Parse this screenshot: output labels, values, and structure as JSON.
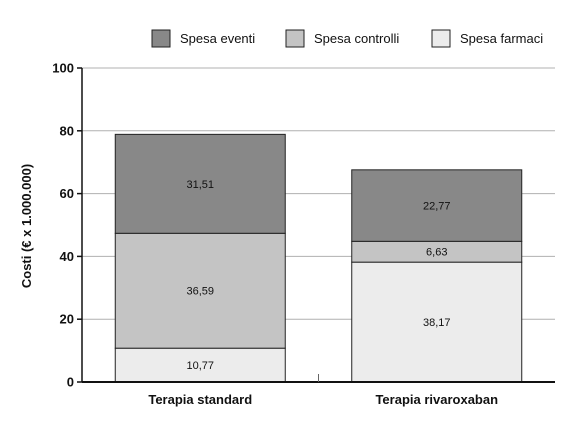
{
  "chart_data": {
    "type": "bar",
    "stacked": true,
    "categories": [
      "Terapia standard",
      "Terapia rivaroxaban"
    ],
    "series": [
      {
        "name": "Spesa farmaci",
        "color": "#ececec",
        "values": [
          10.77,
          38.17
        ],
        "labels": [
          "10,77",
          "38,17"
        ]
      },
      {
        "name": "Spesa controlli",
        "color": "#c4c4c4",
        "values": [
          36.59,
          6.63
        ],
        "labels": [
          "36,59",
          "6,63"
        ]
      },
      {
        "name": "Spesa eventi",
        "color": "#888888",
        "values": [
          31.51,
          22.77
        ],
        "labels": [
          "31,51",
          "22,77"
        ]
      }
    ],
    "legend_order": [
      "Spesa eventi",
      "Spesa controlli",
      "Spesa farmaci"
    ],
    "legend_position": "top-right",
    "title": "",
    "xlabel": "",
    "ylabel": "Costi (€ x 1.000.000)",
    "ylim": [
      0,
      100
    ],
    "yticks": [
      0,
      20,
      40,
      60,
      80,
      100
    ],
    "grid": true
  }
}
